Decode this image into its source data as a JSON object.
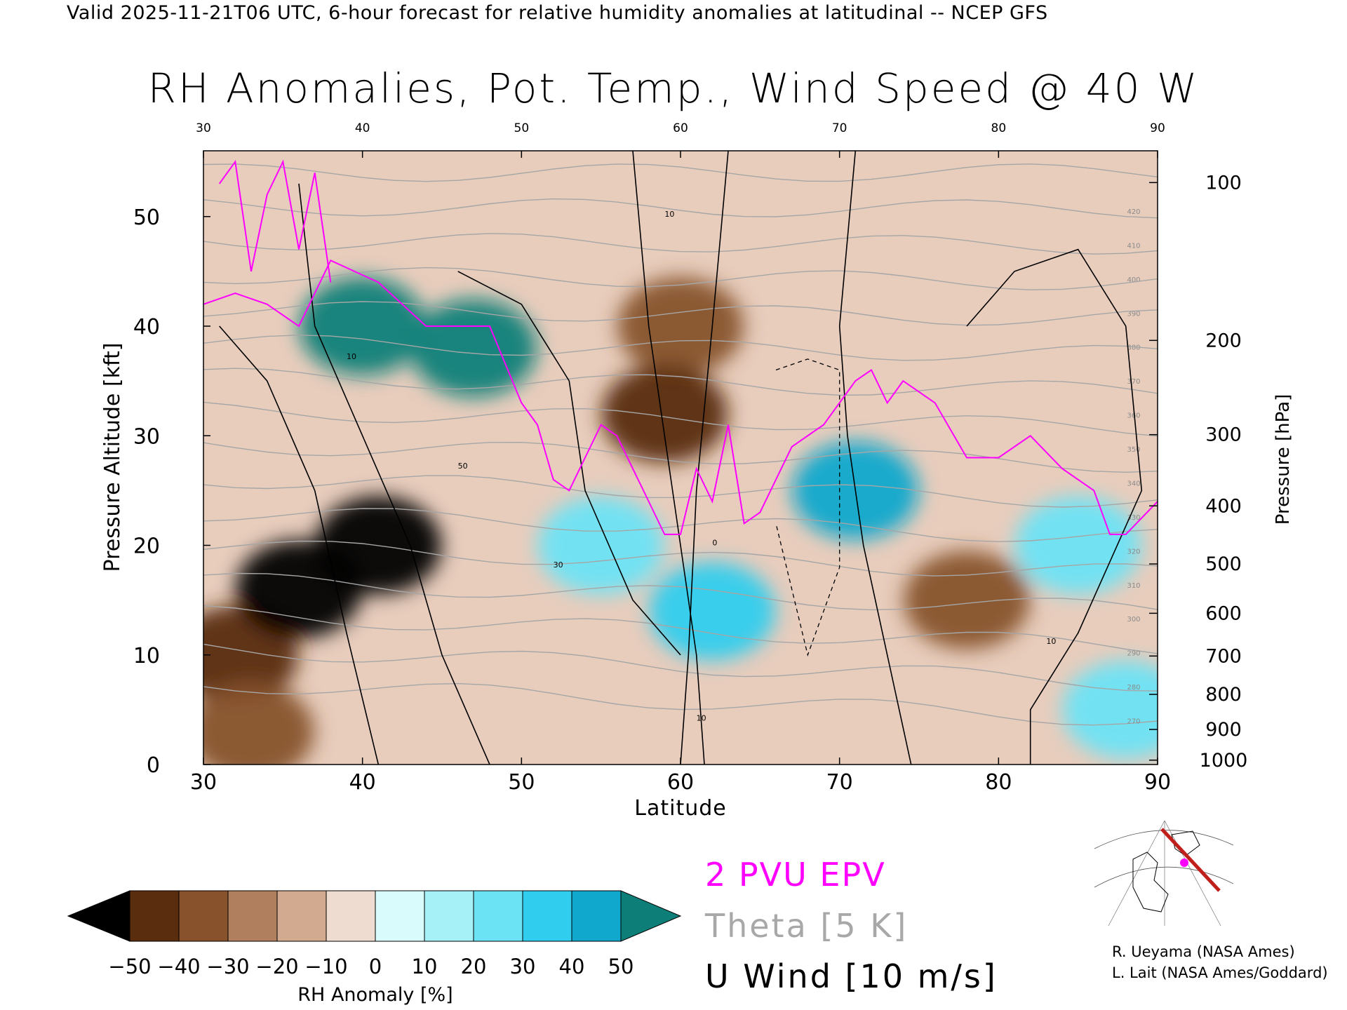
{
  "header": "Valid 2025-11-21T06 UTC, 6-hour forecast for relative humidity anomalies at latitudinal -- NCEP GFS",
  "title": "RH Anomalies, Pot. Temp., Wind Speed @ 40 W",
  "chart_data": {
    "type": "heatmap",
    "xlabel": "Latitude",
    "ylabel": "Pressure Altitude [kft]",
    "y2label": "Pressure [hPa]",
    "xlim": [
      30,
      90
    ],
    "ylim": [
      0,
      56
    ],
    "x_ticks": [
      30,
      40,
      50,
      60,
      70,
      80,
      90
    ],
    "y_ticks": [
      0,
      10,
      20,
      30,
      40,
      50
    ],
    "pressure_ticks": [
      {
        "hPa": "100",
        "kft": 53.1
      },
      {
        "hPa": "200",
        "kft": 38.7
      },
      {
        "hPa": "300",
        "kft": 30.1
      },
      {
        "hPa": "400",
        "kft": 23.6
      },
      {
        "hPa": "500",
        "kft": 18.3
      },
      {
        "hPa": "600",
        "kft": 13.8
      },
      {
        "hPa": "700",
        "kft": 9.9
      },
      {
        "hPa": "800",
        "kft": 6.4
      },
      {
        "hPa": "900",
        "kft": 3.2
      },
      {
        "hPa": "1000",
        "kft": 0.4
      }
    ],
    "colorbar": {
      "label": "RH Anomaly [%]",
      "ticks": [
        "−50",
        "−40",
        "−30",
        "−20",
        "−10",
        "0",
        "10",
        "20",
        "30",
        "40",
        "50"
      ],
      "colors": [
        "#2b1405",
        "#5a2d0f",
        "#87522c",
        "#b0805e",
        "#d1aa8f",
        "#efdcd0",
        "#dafbfc",
        "#a6f1f8",
        "#6ce3f5",
        "#30cdee",
        "#10a8cc",
        "#0f7f8a"
      ],
      "under_color": "#000000",
      "over_color": "#0e7f78"
    },
    "rh_anomaly_samples": [
      {
        "lat": 32,
        "kft": 10,
        "value": -50
      },
      {
        "lat": 36,
        "kft": 16,
        "value": -55
      },
      {
        "lat": 41,
        "kft": 20,
        "value": -52
      },
      {
        "lat": 33,
        "kft": 3,
        "value": -35
      },
      {
        "lat": 40,
        "kft": 40,
        "value": 55
      },
      {
        "lat": 47,
        "kft": 38,
        "value": 55
      },
      {
        "lat": 55,
        "kft": 20,
        "value": 25
      },
      {
        "lat": 62,
        "kft": 14,
        "value": 35
      },
      {
        "lat": 71,
        "kft": 25,
        "value": 45
      },
      {
        "lat": 60,
        "kft": 40,
        "value": -35
      },
      {
        "lat": 59,
        "kft": 32,
        "value": -45
      },
      {
        "lat": 78,
        "kft": 15,
        "value": -35
      },
      {
        "lat": 85,
        "kft": 20,
        "value": 20
      },
      {
        "lat": 88,
        "kft": 5,
        "value": 20
      }
    ],
    "theta_contour_labels": [
      "420",
      "410",
      "400",
      "390",
      "380",
      "370",
      "360",
      "350",
      "340",
      "330",
      "320",
      "310",
      "300",
      "290",
      "280",
      "270"
    ],
    "wind_contour_labels": [
      "0",
      "10",
      "30",
      "50"
    ],
    "epv_2pvu_line": [
      [
        30,
        42
      ],
      [
        32,
        43
      ],
      [
        34,
        42
      ],
      [
        36,
        40
      ],
      [
        38,
        46
      ],
      [
        41,
        44
      ],
      [
        44,
        40
      ],
      [
        47,
        40
      ],
      [
        48,
        40
      ],
      [
        50,
        33
      ],
      [
        51,
        31
      ],
      [
        52,
        26
      ],
      [
        53,
        25
      ],
      [
        55,
        31
      ],
      [
        56,
        30
      ],
      [
        58,
        24
      ],
      [
        59,
        21
      ],
      [
        60,
        21
      ],
      [
        61,
        27
      ],
      [
        62,
        24
      ],
      [
        63,
        31
      ],
      [
        64,
        22
      ],
      [
        65,
        23
      ],
      [
        67,
        29
      ],
      [
        69,
        31
      ],
      [
        71,
        35
      ],
      [
        72,
        36
      ],
      [
        73,
        33
      ],
      [
        74,
        35
      ],
      [
        76,
        33
      ],
      [
        78,
        28
      ],
      [
        80,
        28
      ],
      [
        82,
        30
      ],
      [
        84,
        27
      ],
      [
        86,
        25
      ],
      [
        87,
        21
      ],
      [
        88,
        21
      ],
      [
        90,
        24
      ]
    ],
    "epv_2pvu_upper": [
      [
        31,
        53
      ],
      [
        32,
        55
      ],
      [
        33,
        45
      ],
      [
        34,
        52
      ],
      [
        35,
        55
      ],
      [
        36,
        47
      ],
      [
        37,
        54
      ],
      [
        38,
        44
      ]
    ]
  },
  "legend": {
    "epv": "2 PVU EPV",
    "theta": "Theta [5 K]",
    "wind": "U Wind [10 m/s]"
  },
  "credits": [
    "R. Ueyama (NASA Ames)",
    "L. Lait (NASA Ames/Goddard)"
  ]
}
